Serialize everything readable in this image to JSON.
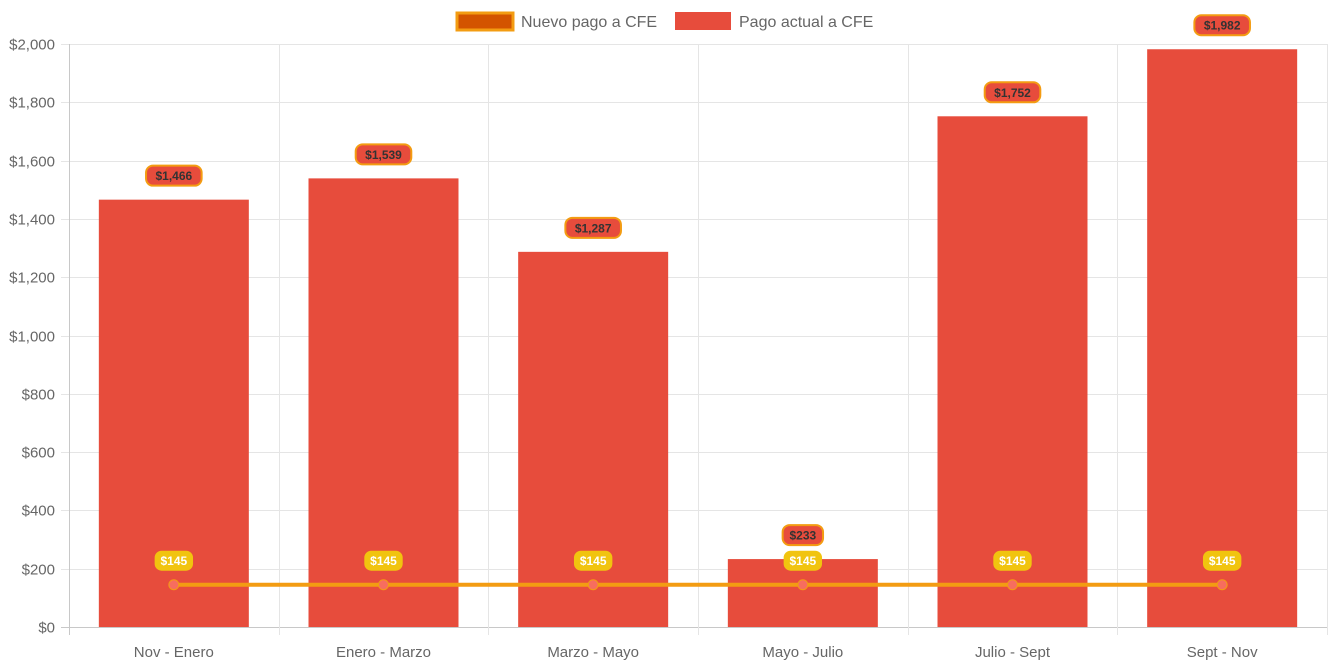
{
  "chart_data": {
    "type": "bar",
    "categories": [
      "Nov - Enero",
      "Enero - Marzo",
      "Marzo - Mayo",
      "Mayo - Julio",
      "Julio - Sept",
      "Sept - Nov"
    ],
    "series": [
      {
        "name": "Nuevo pago a CFE",
        "kind": "line",
        "values": [
          145,
          145,
          145,
          145,
          145,
          145
        ],
        "labels": [
          "$145",
          "$145",
          "$145",
          "$145",
          "$145",
          "$145"
        ],
        "color": "#f39c12",
        "point_color": "#f76d5e",
        "label_bg": "#f1c40f",
        "label_color": "#ffffff",
        "legend_swatch_fill": "#d35400",
        "legend_swatch_border": "#f39c12"
      },
      {
        "name": "Pago actual a CFE",
        "kind": "bar",
        "values": [
          1466,
          1539,
          1287,
          233,
          1752,
          1982
        ],
        "labels": [
          "$1,466",
          "$1,539",
          "$1,287",
          "$233",
          "$1,752",
          "$1,982"
        ],
        "color": "#e74c3c",
        "label_bg": "#e74c3c",
        "label_border": "#f39c12",
        "label_color": "#333333"
      }
    ],
    "y_ticks": [
      "$0",
      "$200",
      "$400",
      "$600",
      "$800",
      "$1,000",
      "$1,200",
      "$1,400",
      "$1,600",
      "$1,800",
      "$2,000"
    ],
    "ylim": [
      0,
      2000
    ],
    "y_step": 200,
    "grid": true,
    "legend": "top-center",
    "grid_color": "#e5e5e5",
    "axis_color": "#c8c8c8"
  }
}
